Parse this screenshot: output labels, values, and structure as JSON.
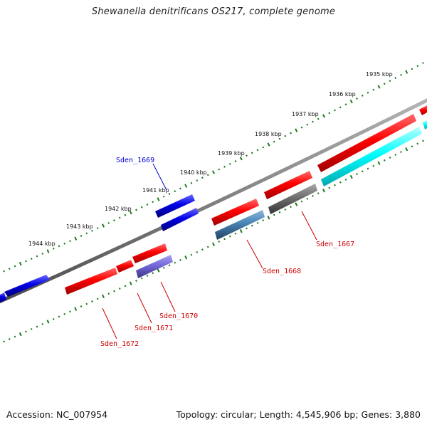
{
  "title": "Shewanella denitrificans OS217, complete genome",
  "footer": {
    "accession": "Accession: NC_007954",
    "summary": "Topology: circular; Length: 4,545,906 bp; Genes: 3,880"
  },
  "colors": {
    "gene_red": "#ff0000",
    "gene_blue": "#0000e6",
    "gene_cyan": "#00ffff",
    "gene_steel": "#4682b4",
    "gene_gray": "#6e6e6e",
    "gene_lavender": "#7468d8",
    "backbone": "#808080",
    "tick_green": "#1a7a1a",
    "label_red": "#cc0000",
    "label_blue": "#0000cc"
  },
  "kbp_labels": [
    "1935 kbp",
    "1936 kbp",
    "1937 kbp",
    "1938 kbp",
    "1939 kbp",
    "1940 kbp",
    "1941 kbp",
    "1942 kbp",
    "1943 kbp",
    "1944 kbp"
  ],
  "gene_labels": [
    {
      "id": "sden-1669",
      "text": "Sden_1669",
      "color": "blue"
    },
    {
      "id": "sden-1667",
      "text": "Sden_1667",
      "color": "red"
    },
    {
      "id": "sden-1668",
      "text": "Sden_1668",
      "color": "red"
    },
    {
      "id": "sden-1670",
      "text": "Sden_1670",
      "color": "red"
    },
    {
      "id": "sden-1671",
      "text": "Sden_1671",
      "color": "red"
    },
    {
      "id": "sden-1672",
      "text": "Sden_1672",
      "color": "red"
    }
  ]
}
